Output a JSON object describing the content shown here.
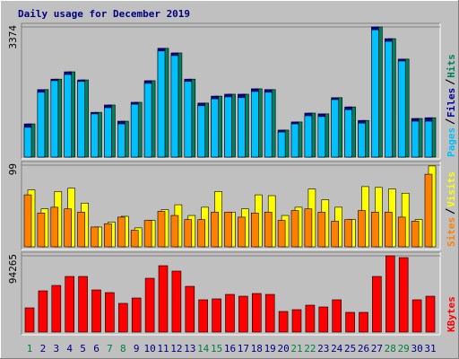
{
  "chart_data": [
    {
      "type": "bar",
      "title": "Daily usage for December 2019",
      "categories": [
        "1",
        "2",
        "3",
        "4",
        "5",
        "6",
        "7",
        "8",
        "9",
        "10",
        "11",
        "12",
        "13",
        "14",
        "15",
        "16",
        "17",
        "18",
        "19",
        "20",
        "21",
        "22",
        "23",
        "24",
        "25",
        "26",
        "27",
        "28",
        "29",
        "30",
        "31"
      ],
      "category_colors": [
        "#008040",
        "#000080",
        "#000080",
        "#000080",
        "#000080",
        "#000080",
        "#008040",
        "#008040",
        "#000080",
        "#000080",
        "#000080",
        "#000080",
        "#000080",
        "#008040",
        "#008040",
        "#000080",
        "#000080",
        "#000080",
        "#000080",
        "#000080",
        "#008040",
        "#008040",
        "#000080",
        "#000080",
        "#000080",
        "#000080",
        "#000080",
        "#008040",
        "#008040",
        "#000080",
        "#000080"
      ],
      "series": [
        {
          "name": "Pages",
          "color": "#00c0ff",
          "values": [
            770,
            1680,
            1980,
            2140,
            1960,
            1120,
            1280,
            860,
            1370,
            1910,
            2750,
            2630,
            1960,
            1330,
            1510,
            1560,
            1540,
            1700,
            1680,
            650,
            860,
            1070,
            1050,
            1490,
            1230,
            880,
            3300,
            3000,
            2490,
            930,
            930
          ]
        },
        {
          "name": "Files",
          "color": "#0000a0",
          "values": [
            860,
            1750,
            2020,
            2210,
            2000,
            1160,
            1350,
            930,
            1420,
            1980,
            2820,
            2700,
            2020,
            1400,
            1580,
            1630,
            1630,
            1770,
            1750,
            700,
            910,
            1140,
            1120,
            1540,
            1300,
            950,
            3374,
            3070,
            2540,
            1000,
            1020
          ]
        },
        {
          "name": "Hits",
          "color": "#00805c",
          "values": [
            860,
            1750,
            2020,
            2210,
            2000,
            1160,
            1350,
            930,
            1420,
            1980,
            2820,
            2700,
            2020,
            1400,
            1580,
            1630,
            1630,
            1770,
            1750,
            700,
            910,
            1140,
            1120,
            1540,
            1300,
            950,
            3374,
            3070,
            2540,
            1000,
            1020
          ]
        }
      ],
      "ylim": [
        0,
        3374
      ],
      "yticks": [
        3374
      ],
      "grid": true
    },
    {
      "type": "bar",
      "series": [
        {
          "name": "Sites",
          "color": "#ff8000",
          "values": [
            63,
            41,
            48,
            46,
            42,
            24,
            28,
            36,
            20,
            32,
            43,
            38,
            33,
            33,
            42,
            42,
            36,
            41,
            42,
            32,
            44,
            46,
            42,
            31,
            33,
            44,
            42,
            42,
            36,
            31,
            88
          ]
        },
        {
          "name": "Visits",
          "color": "#ffff00",
          "values": [
            69,
            46,
            67,
            71,
            53,
            24,
            30,
            37,
            23,
            32,
            45,
            51,
            38,
            48,
            67,
            42,
            46,
            63,
            62,
            38,
            48,
            70,
            57,
            48,
            33,
            73,
            72,
            70,
            65,
            33,
            98
          ]
        }
      ],
      "ylim": [
        0,
        99
      ],
      "yticks": [
        99
      ],
      "grid": true
    },
    {
      "type": "bar",
      "series": [
        {
          "name": "KBytes",
          "color": "#ff0000",
          "values": [
            29940,
            51000,
            57650,
            68740,
            68740,
            52110,
            48780,
            35490,
            42140,
            66520,
            82050,
            75400,
            56550,
            39920,
            41030,
            46570,
            44350,
            47680,
            46570,
            25500,
            27720,
            33270,
            31050,
            39920,
            24400,
            24400,
            68740,
            94265,
            92050,
            39920,
            44350
          ]
        }
      ],
      "ylim": [
        0,
        94265
      ],
      "yticks": [
        94265
      ],
      "grid": true
    }
  ]
}
